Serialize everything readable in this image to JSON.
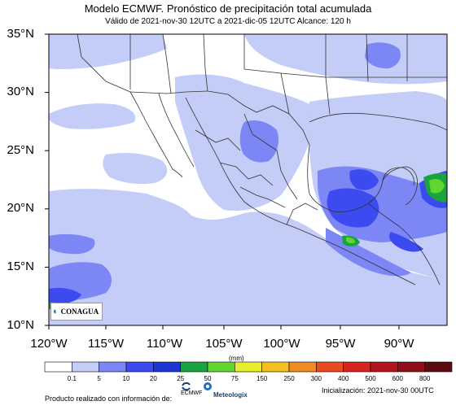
{
  "header": {
    "title": "Modelo ECMWF. Pronóstico de precipitación total acumulada",
    "subtitle": "Válido de 2021-nov-30 12UTC a 2021-dic-05 12UTC    Alcance: 120 h"
  },
  "map": {
    "lat_labels": [
      "35°N",
      "30°N",
      "25°N",
      "20°N",
      "15°N",
      "10°N"
    ],
    "lon_labels": [
      "120°W",
      "115°W",
      "110°W",
      "105°W",
      "100°W",
      "95°W",
      "90°W"
    ],
    "logo_text": "CONAGUA"
  },
  "colorbar": {
    "units": "(mm)",
    "ticks": [
      "0.1",
      "5",
      "10",
      "20",
      "25",
      "50",
      "75",
      "150",
      "250",
      "300",
      "400",
      "500",
      "600",
      "800"
    ],
    "colors": [
      "#ffffff",
      "#c3cdf8",
      "#7d86f5",
      "#3c4bf0",
      "#1f35d4",
      "#1aa33f",
      "#62d630",
      "#e8ee2c",
      "#f3c020",
      "#f08a22",
      "#e94a1f",
      "#d9231e",
      "#b4151c",
      "#8e0f18",
      "#5c0c10"
    ]
  },
  "footer": {
    "producto": "Producto realizado con información de:",
    "logo1": "ECMWF",
    "logo2": "Meteologix",
    "inicializacion": "Inicialización: 2021-nov-30 00UTC"
  }
}
